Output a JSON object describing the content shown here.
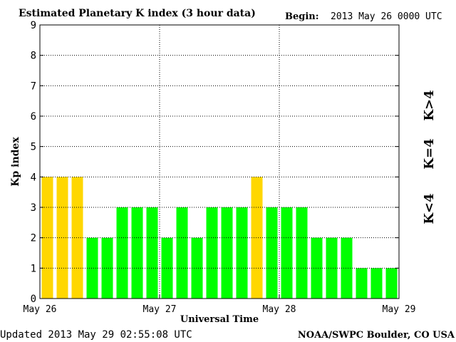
{
  "chart_data": {
    "type": "bar",
    "title": "Estimated Planetary K index (3 hour data)",
    "begin_label": "Begin:",
    "begin_value": "2013 May 26 0000 UTC",
    "xlabel": "Universal Time",
    "ylabel": "Kp index",
    "ylim": [
      0,
      9
    ],
    "yticks": [
      "0",
      "1",
      "2",
      "3",
      "4",
      "5",
      "6",
      "7",
      "8",
      "9"
    ],
    "xticks": [
      "May 26",
      "May 27",
      "May 28",
      "May 29"
    ],
    "grid": true,
    "values": [
      4,
      4,
      4,
      2,
      2,
      3,
      3,
      3,
      2,
      3,
      2,
      3,
      3,
      3,
      4,
      3,
      3,
      3,
      2,
      2,
      2,
      1,
      1,
      1
    ],
    "colors": {
      "below4": "#00ff00",
      "equal4": "#ffd700",
      "above4": "#ff2a00"
    },
    "legend": {
      "below": "K<4",
      "equal": "K=4",
      "above": "K>4"
    },
    "footer_left": "Updated 2013 May 29 02:55:08 UTC",
    "footer_right": "NOAA/SWPC Boulder, CO USA"
  }
}
